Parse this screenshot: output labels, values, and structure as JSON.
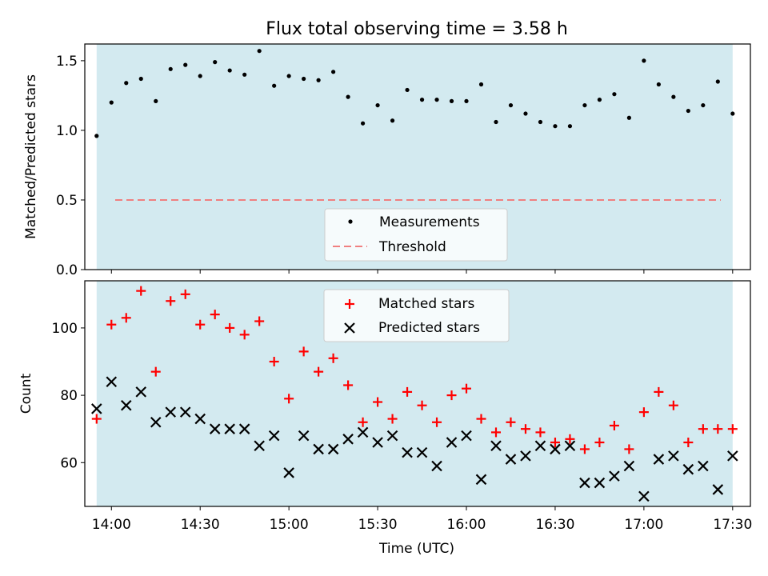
{
  "figure": {
    "title": "Flux total observing time = 3.58 h",
    "xlabel": "Time (UTC)",
    "x_ticks": [
      "14:00",
      "14:30",
      "15:00",
      "15:30",
      "16:00",
      "16:30",
      "17:00",
      "17:30"
    ],
    "x_range": [
      "13:51",
      "17:36"
    ],
    "shaded_region": [
      "13:55",
      "17:30"
    ],
    "shade_color": "#d3eaf0",
    "times": [
      "13:55",
      "14:00",
      "14:05",
      "14:10",
      "14:15",
      "14:20",
      "14:25",
      "14:30",
      "14:35",
      "14:40",
      "14:45",
      "14:50",
      "14:55",
      "15:00",
      "15:05",
      "15:10",
      "15:15",
      "15:20",
      "15:25",
      "15:30",
      "15:35",
      "15:40",
      "15:45",
      "15:50",
      "15:55",
      "16:00",
      "16:05",
      "16:10",
      "16:15",
      "16:20",
      "16:25",
      "16:30",
      "16:35",
      "16:40",
      "16:45",
      "16:50",
      "16:55",
      "17:00",
      "17:05",
      "17:10",
      "17:15",
      "17:20",
      "17:25",
      "17:30"
    ]
  },
  "chart_data": [
    {
      "type": "scatter",
      "ylabel": "Matched/Predicted stars",
      "ylim": [
        0,
        1.62
      ],
      "y_ticks": [
        "0.0",
        "0.5",
        "1.0",
        "1.5"
      ],
      "legend_position": "bottom-center",
      "series": [
        {
          "name": "Measurements",
          "marker": "dot",
          "color": "#000000",
          "values": [
            0.96,
            1.2,
            1.34,
            1.37,
            1.21,
            1.44,
            1.47,
            1.39,
            1.49,
            1.43,
            1.4,
            1.57,
            1.32,
            1.39,
            1.37,
            1.36,
            1.42,
            1.24,
            1.05,
            1.18,
            1.07,
            1.29,
            1.22,
            1.22,
            1.21,
            1.21,
            1.33,
            1.06,
            1.18,
            1.12,
            1.06,
            1.03,
            1.03,
            1.18,
            1.22,
            1.26,
            1.09,
            1.5,
            1.33,
            1.24,
            1.14,
            1.18,
            1.35,
            1.12
          ]
        },
        {
          "name": "Threshold",
          "marker": "dashed-line",
          "color": "#f08080",
          "value": 0.5
        }
      ]
    },
    {
      "type": "scatter",
      "ylabel": "Count",
      "ylim": [
        47,
        114
      ],
      "y_ticks": [
        "60",
        "80",
        "100"
      ],
      "legend_position": "top-center",
      "series": [
        {
          "name": "Matched stars",
          "marker": "plus",
          "color": "#ff0000",
          "values": [
            73,
            101,
            103,
            111,
            87,
            108,
            110,
            101,
            104,
            100,
            98,
            102,
            90,
            79,
            93,
            87,
            91,
            83,
            72,
            78,
            73,
            81,
            77,
            72,
            80,
            82,
            73,
            69,
            72,
            70,
            69,
            66,
            67,
            64,
            66,
            71,
            64,
            75,
            81,
            77,
            66,
            70,
            70,
            70
          ]
        },
        {
          "name": "Predicted stars",
          "marker": "x",
          "color": "#000000",
          "values": [
            76,
            84,
            77,
            81,
            72,
            75,
            75,
            73,
            70,
            70,
            70,
            65,
            68,
            57,
            68,
            64,
            64,
            67,
            69,
            66,
            68,
            63,
            63,
            59,
            66,
            68,
            55,
            65,
            61,
            62,
            65,
            64,
            65,
            54,
            54,
            56,
            59,
            50,
            61,
            62,
            58,
            59,
            52,
            62
          ]
        }
      ]
    }
  ]
}
